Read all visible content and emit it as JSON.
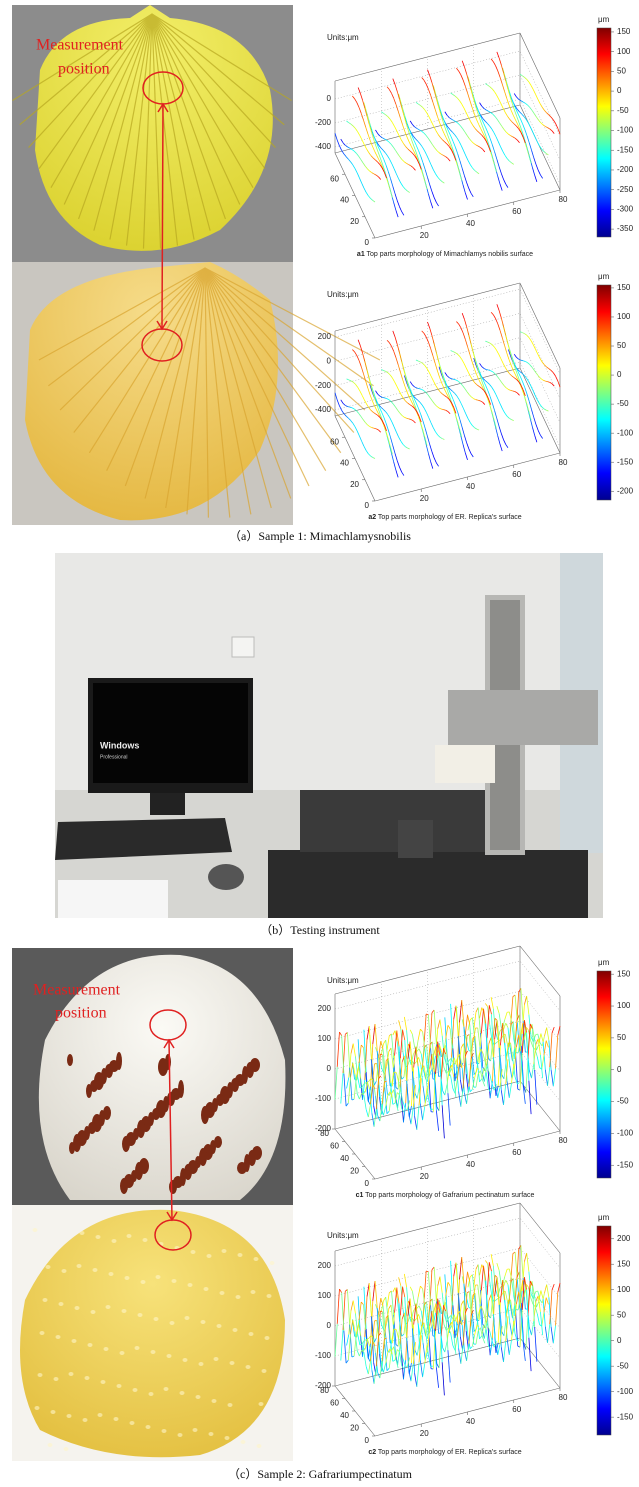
{
  "panels": [
    {
      "caption": "（a）Sample 1: Mimachlamysnobilis",
      "photo_label": [
        "Measurement",
        "position"
      ],
      "plots": [
        {
          "units": "Units:μm",
          "id": "a1",
          "caption": " Top parts morphology of Mimachlamys nobilis surface",
          "zlim": [
            -450,
            150
          ],
          "zticks": [
            -400,
            -200,
            0
          ],
          "xlim": [
            0,
            80
          ],
          "xticks": [
            20,
            40,
            60,
            80
          ],
          "ylim": [
            0,
            80
          ],
          "yticks": [
            0,
            20,
            40,
            60
          ],
          "colorbar_label": "μm",
          "colorbar_lim": [
            -370,
            160
          ],
          "colorbar_ticks": [
            -350,
            -300,
            -250,
            -200,
            -150,
            -100,
            -50,
            0,
            50,
            100,
            150
          ]
        },
        {
          "units": "Units:μm",
          "id": "a2",
          "caption": " Top parts morphology of ER. Replica's surface",
          "zlim": [
            -450,
            250
          ],
          "zticks": [
            -400,
            -200,
            0,
            200
          ],
          "xlim": [
            0,
            80
          ],
          "xticks": [
            20,
            40,
            60,
            80
          ],
          "ylim": [
            0,
            80
          ],
          "yticks": [
            0,
            20,
            40,
            60
          ],
          "colorbar_label": "μm",
          "colorbar_lim": [
            -215,
            155
          ],
          "colorbar_ticks": [
            -200,
            -150,
            -100,
            -50,
            0,
            50,
            100,
            150
          ]
        }
      ]
    },
    {
      "caption": "（b）Testing instrument",
      "screen_text": [
        "Windows",
        "Professional"
      ]
    },
    {
      "caption": "（c）Sample 2: Gafrariumpectinatum",
      "photo_label": [
        "Measurement",
        "position"
      ],
      "plots": [
        {
          "units": "Units:μm",
          "id": "c1",
          "caption": " Top parts morphology of Gafrarium pectinatum  surface",
          "zlim": [
            -200,
            250
          ],
          "zticks": [
            -200,
            -100,
            0,
            100,
            200
          ],
          "xlim": [
            0,
            80
          ],
          "xticks": [
            20,
            40,
            60,
            80
          ],
          "ylim": [
            0,
            80
          ],
          "yticks": [
            0,
            20,
            40,
            60,
            80
          ],
          "colorbar_label": "μm",
          "colorbar_lim": [
            -170,
            155
          ],
          "colorbar_ticks": [
            -150,
            -100,
            -50,
            0,
            50,
            100,
            150
          ]
        },
        {
          "units": "Units:μm",
          "id": "c2",
          "caption": " Top parts morphology of ER. Replica's surface",
          "zlim": [
            -200,
            250
          ],
          "zticks": [
            -200,
            -100,
            0,
            100,
            200
          ],
          "xlim": [
            0,
            80
          ],
          "xticks": [
            20,
            40,
            60,
            80
          ],
          "ylim": [
            0,
            80
          ],
          "yticks": [
            0,
            20,
            40,
            60,
            80
          ],
          "colorbar_label": "μm",
          "colorbar_lim": [
            -185,
            225
          ],
          "colorbar_ticks": [
            -150,
            -100,
            -50,
            0,
            50,
            100,
            150,
            200
          ]
        }
      ]
    }
  ]
}
